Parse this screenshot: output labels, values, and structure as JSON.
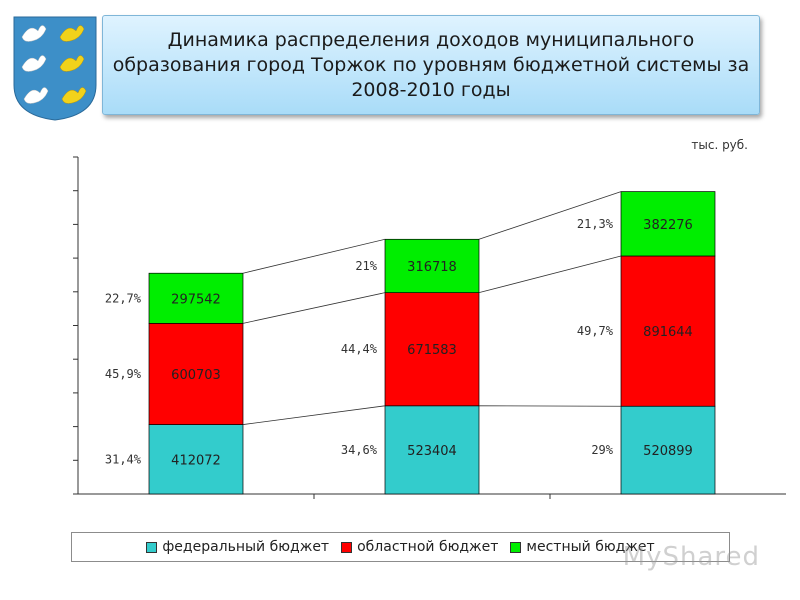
{
  "title": "Динамика распределения доходов муниципального образования город Торжок по уровням бюджетной системы за 2008-2010 годы",
  "unit_label": "тыс. руб.",
  "watermark": "MyShared",
  "colors": {
    "federal": "#33cccc",
    "regional": "#ff0000",
    "local": "#00ee00"
  },
  "chart_data": {
    "type": "bar",
    "stacked": true,
    "categories": [
      "",
      "",
      ""
    ],
    "series": [
      {
        "name": "федеральный бюджет",
        "color": "#33cccc",
        "values": [
          412072,
          523404,
          520899
        ],
        "percent_labels": [
          "31,4%",
          "34,6%",
          "29%"
        ]
      },
      {
        "name": "областной бюджет",
        "color": "#ff0000",
        "values": [
          600703,
          671583,
          891644
        ],
        "percent_labels": [
          "45,9%",
          "44,4%",
          "49,7%"
        ]
      },
      {
        "name": "местный бюджет",
        "color": "#00ee00",
        "values": [
          297542,
          316718,
          382276
        ],
        "percent_labels": [
          "22,7%",
          "21%",
          "21,3%"
        ]
      }
    ],
    "ylim": [
      0,
      2000000
    ],
    "y_ticks": 10,
    "grid": false,
    "legend_position": "bottom"
  }
}
